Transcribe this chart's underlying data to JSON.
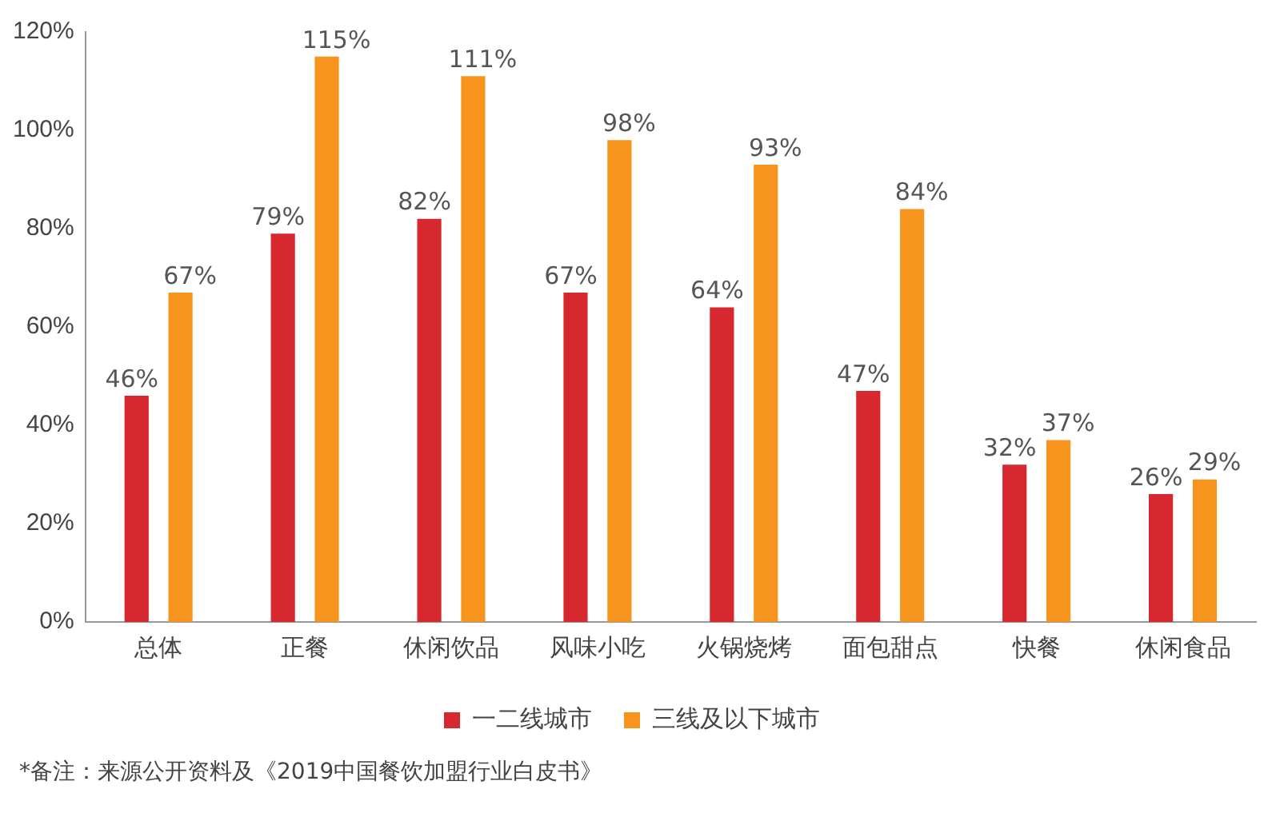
{
  "chart_data": {
    "type": "bar",
    "categories": [
      "总体",
      "正餐",
      "休闲饮品",
      "风味小吃",
      "火锅烧烤",
      "面包甜点",
      "快餐",
      "休闲食品"
    ],
    "series": [
      {
        "name": "一二线城市",
        "color": "#d7282f",
        "values": [
          46,
          79,
          82,
          67,
          64,
          47,
          32,
          26
        ],
        "value_labels": [
          "46%",
          "79%",
          "82%",
          "67%",
          "64%",
          "47%",
          "32%",
          "26%"
        ]
      },
      {
        "name": "三线及以下城市",
        "color": "#f7941d",
        "values": [
          67,
          115,
          111,
          98,
          93,
          84,
          37,
          29
        ],
        "value_labels": [
          "67%",
          "115%",
          "111%",
          "98%",
          "93%",
          "84%",
          "37%",
          "29%"
        ]
      }
    ],
    "ylim": [
      0,
      120
    ],
    "yticks": [
      {
        "value": 0,
        "label": "0%"
      },
      {
        "value": 20,
        "label": "20%"
      },
      {
        "value": 40,
        "label": "40%"
      },
      {
        "value": 60,
        "label": "60%"
      },
      {
        "value": 80,
        "label": "80%"
      },
      {
        "value": 100,
        "label": "100%"
      },
      {
        "value": 120,
        "label": "120%"
      }
    ],
    "grid": false,
    "legend": "bottom",
    "annotations": [
      "*备注：来源公开资料及《2019中国餐饮加盟行业白皮书》"
    ]
  }
}
